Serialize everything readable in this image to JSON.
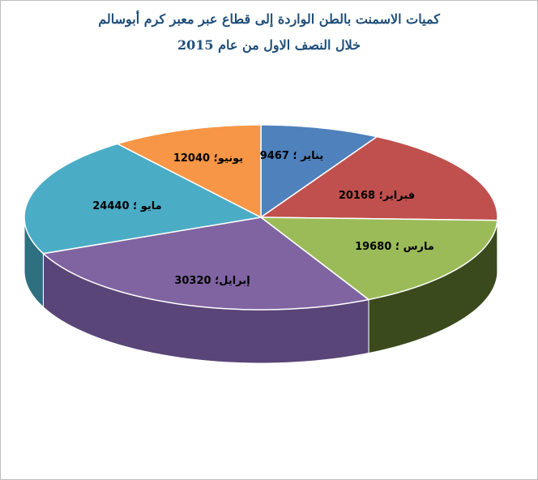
{
  "chart_data": {
    "type": "pie",
    "title_line1": "كميات الاسمنت بالطن الواردة إلى قطاع عبر معبر كرم أبوسالم",
    "title_line2": "خلال النصف الاول من عام 2015",
    "slices": [
      {
        "label": "يناير",
        "value": 9467,
        "display": "يناير ؛ 9467",
        "color": "#4f81bd",
        "side": "#2e4d73"
      },
      {
        "label": "فبراير",
        "value": 20168,
        "display": "فبراير؛ 20168",
        "color": "#c0504d",
        "side": "#6f2b29"
      },
      {
        "label": "مارس",
        "value": 19680,
        "display": "مارس ؛ 19680",
        "color": "#9bbb59",
        "side": "#3a4a1c"
      },
      {
        "label": "ابرايل",
        "value": 30320,
        "display": "إبرايل؛ 30320",
        "color": "#8064a2",
        "side": "#5a4578"
      },
      {
        "label": "مايو",
        "value": 24440,
        "display": "مايو ؛ 24440",
        "color": "#4bacc6",
        "side": "#2e6f80"
      },
      {
        "label": "يونيو",
        "value": 12040,
        "display": "يونيو؛ 12040",
        "color": "#f79646",
        "side": "#a85e20"
      }
    ]
  }
}
